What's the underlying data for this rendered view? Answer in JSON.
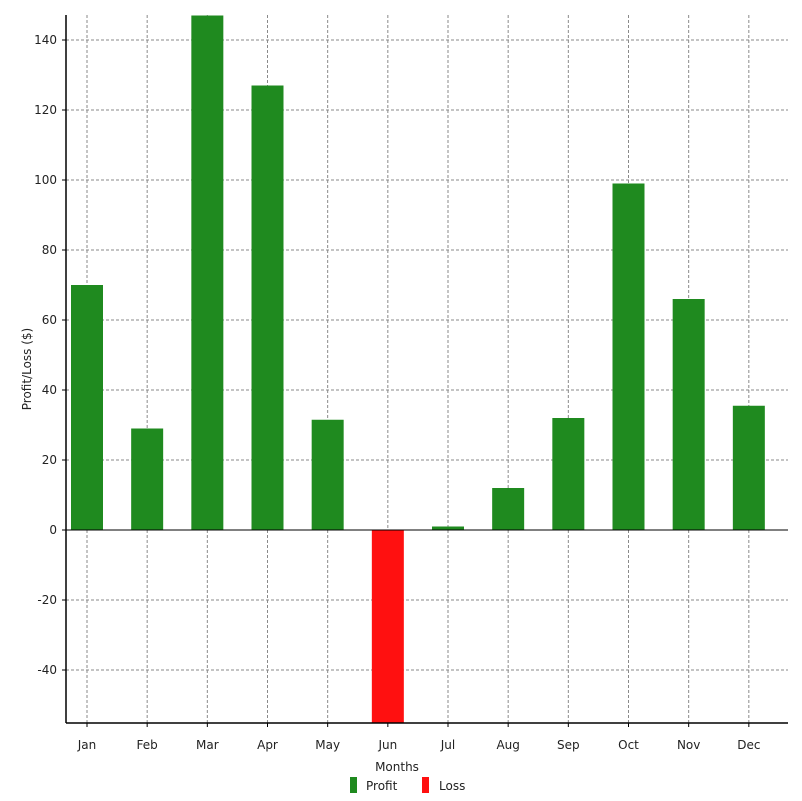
{
  "chart_data": {
    "type": "bar",
    "categories": [
      "Jan",
      "Feb",
      "Mar",
      "Apr",
      "May",
      "Jun",
      "Jul",
      "Aug",
      "Sep",
      "Oct",
      "Nov",
      "Dec"
    ],
    "values": [
      70,
      29,
      147,
      127,
      31.5,
      -55,
      1,
      12,
      32,
      99,
      66,
      35.5
    ],
    "title": "",
    "xlabel": "Months",
    "ylabel": "Profit/Loss ($)",
    "ylim": [
      -55,
      147
    ],
    "yticks": [
      140,
      120,
      100,
      80,
      60,
      40,
      20,
      0,
      -20,
      -40
    ],
    "grid": true,
    "legend": {
      "placement": "bottom-center",
      "entries": [
        {
          "label": "Profit",
          "color": "#1f8a1f"
        },
        {
          "label": "Loss",
          "color": "#ff1010"
        }
      ]
    },
    "colors": {
      "profit": "#1f8a1f",
      "loss": "#ff1010"
    }
  }
}
